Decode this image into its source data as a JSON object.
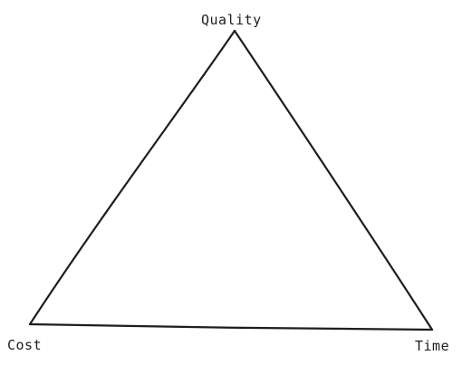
{
  "diagram": {
    "vertices": {
      "top": {
        "label": "Quality"
      },
      "bottom_left": {
        "label": "Cost"
      },
      "bottom_right": {
        "label": "Time"
      }
    },
    "stroke_color": "#1e1e1e",
    "background": "#ffffff"
  }
}
